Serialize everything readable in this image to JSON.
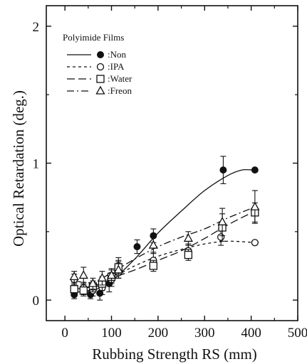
{
  "chart_data": {
    "type": "scatter",
    "xlabel": "Rubbing Strength RS (mm)",
    "ylabel": "Optical Retardation (deg.)",
    "xlim": [
      -40,
      500
    ],
    "ylim": [
      -0.15,
      2.15
    ],
    "xticks": [
      "0",
      "100",
      "200",
      "300",
      "400",
      "500"
    ],
    "yticks": [
      "0",
      "1",
      "2"
    ],
    "legend": {
      "title": "Polyimide Films",
      "entries": [
        ":Non",
        ":IPA",
        ":Water",
        ":Freon"
      ],
      "placement": "top-left"
    },
    "series": [
      {
        "name": ":Non",
        "marker": "filled-circle",
        "line": "solid",
        "points": [
          {
            "x": 20,
            "y": 0.04,
            "err": 0.03
          },
          {
            "x": 40,
            "y": 0.07,
            "err": 0.03
          },
          {
            "x": 55,
            "y": 0.04,
            "err": 0.03
          },
          {
            "x": 75,
            "y": 0.05,
            "err": 0.05
          },
          {
            "x": 95,
            "y": 0.12,
            "err": 0.06
          },
          {
            "x": 115,
            "y": 0.25,
            "err": 0.06
          },
          {
            "x": 155,
            "y": 0.39,
            "err": 0.05
          },
          {
            "x": 190,
            "y": 0.47,
            "err": 0.05
          },
          {
            "x": 265,
            "y": 0.36,
            "err": 0.04
          },
          {
            "x": 340,
            "y": 0.95,
            "err": 0.1
          },
          {
            "x": 408,
            "y": 0.95,
            "err": 0
          }
        ],
        "curve": [
          [
            20,
            0.06
          ],
          [
            60,
            0.07
          ],
          [
            100,
            0.14
          ],
          [
            150,
            0.3
          ],
          [
            200,
            0.49
          ],
          [
            250,
            0.65
          ],
          [
            300,
            0.8
          ],
          [
            350,
            0.91
          ],
          [
            380,
            0.95
          ],
          [
            405,
            0.95
          ]
        ]
      },
      {
        "name": ":IPA",
        "marker": "open-circle",
        "line": "dashed",
        "points": [
          {
            "x": 20,
            "y": 0.15,
            "err": 0.04
          },
          {
            "x": 40,
            "y": 0.09,
            "err": 0.04
          },
          {
            "x": 60,
            "y": 0.07,
            "err": 0.04
          },
          {
            "x": 80,
            "y": 0.09,
            "err": 0.05
          },
          {
            "x": 100,
            "y": 0.15,
            "err": 0.05
          },
          {
            "x": 115,
            "y": 0.2,
            "err": 0.04
          },
          {
            "x": 190,
            "y": 0.29,
            "err": 0.06
          },
          {
            "x": 265,
            "y": 0.36,
            "err": 0.05
          },
          {
            "x": 335,
            "y": 0.46,
            "err": 0.06
          },
          {
            "x": 408,
            "y": 0.42,
            "err": 0
          }
        ],
        "curve": [
          [
            20,
            0.1
          ],
          [
            60,
            0.1
          ],
          [
            100,
            0.16
          ],
          [
            150,
            0.25
          ],
          [
            200,
            0.32
          ],
          [
            250,
            0.37
          ],
          [
            300,
            0.41
          ],
          [
            350,
            0.43
          ],
          [
            408,
            0.42
          ]
        ]
      },
      {
        "name": ":Water",
        "marker": "open-square",
        "line": "long-dash",
        "points": [
          {
            "x": 20,
            "y": 0.08,
            "err": 0.04
          },
          {
            "x": 40,
            "y": 0.07,
            "err": 0.04
          },
          {
            "x": 60,
            "y": 0.1,
            "err": 0.04
          },
          {
            "x": 80,
            "y": 0.12,
            "err": 0.05
          },
          {
            "x": 100,
            "y": 0.17,
            "err": 0.05
          },
          {
            "x": 115,
            "y": 0.24,
            "err": 0.05
          },
          {
            "x": 190,
            "y": 0.25,
            "err": 0.04
          },
          {
            "x": 265,
            "y": 0.33,
            "err": 0.04
          },
          {
            "x": 338,
            "y": 0.53,
            "err": 0.1
          },
          {
            "x": 408,
            "y": 0.64,
            "err": 0.07
          }
        ],
        "curve": [
          [
            20,
            0.08
          ],
          [
            60,
            0.1
          ],
          [
            100,
            0.16
          ],
          [
            150,
            0.22
          ],
          [
            200,
            0.29
          ],
          [
            250,
            0.36
          ],
          [
            300,
            0.45
          ],
          [
            350,
            0.55
          ],
          [
            408,
            0.65
          ]
        ]
      },
      {
        "name": ":Freon",
        "marker": "open-triangle",
        "line": "dash-dot",
        "points": [
          {
            "x": 20,
            "y": 0.17,
            "err": 0.04
          },
          {
            "x": 40,
            "y": 0.18,
            "err": 0.06
          },
          {
            "x": 60,
            "y": 0.12,
            "err": 0.04
          },
          {
            "x": 80,
            "y": 0.16,
            "err": 0.05
          },
          {
            "x": 100,
            "y": 0.18,
            "err": 0.05
          },
          {
            "x": 115,
            "y": 0.22,
            "err": 0.06
          },
          {
            "x": 190,
            "y": 0.4,
            "err": 0.06
          },
          {
            "x": 265,
            "y": 0.45,
            "err": 0.05
          },
          {
            "x": 338,
            "y": 0.57,
            "err": 0.1
          },
          {
            "x": 408,
            "y": 0.68,
            "err": 0.12
          }
        ],
        "curve": [
          [
            20,
            0.14
          ],
          [
            60,
            0.13
          ],
          [
            100,
            0.2
          ],
          [
            150,
            0.3
          ],
          [
            200,
            0.39
          ],
          [
            250,
            0.46
          ],
          [
            300,
            0.52
          ],
          [
            350,
            0.6
          ],
          [
            408,
            0.68
          ]
        ]
      }
    ]
  }
}
